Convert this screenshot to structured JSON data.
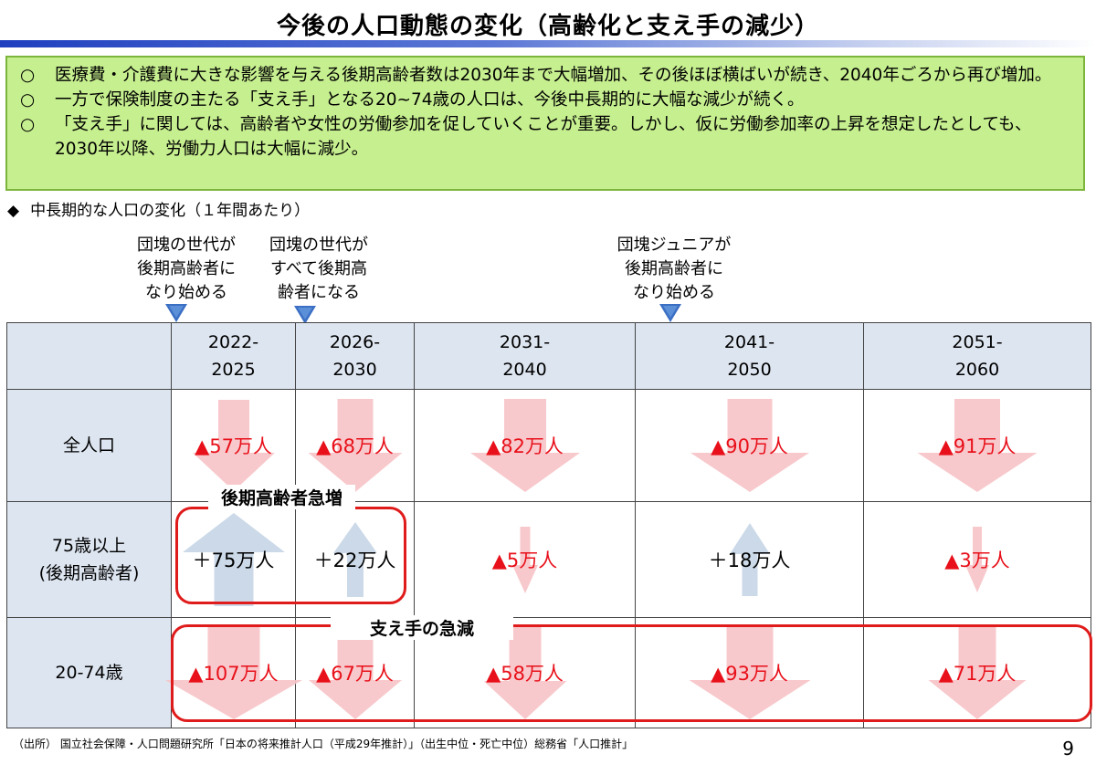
{
  "title": "今後の人口動態の変化（高齢化と支え手の減少）",
  "summary": [
    {
      "mark": "○",
      "text": "医療費・介護費に大きな影響を与える後期高齢者数は2030年まで大幅増加、その後ほぼ横ばいが続き、2040年ごろから再び増加。"
    },
    {
      "mark": "○",
      "text": "一方で保険制度の主たる「支え手」となる20~74歳の人口は、今後中長期的に大幅な減少が続く。"
    },
    {
      "mark": "○",
      "text": "「支え手」に関しては、高齢者や女性の労働参加を促していくことが重要。しかし、仮に労働参加率の上昇を想定したとしても、2030年以降、労働力人口は大幅に減少。"
    }
  ],
  "subheading": {
    "bullet": "◆",
    "text": "中長期的な人口の変化（１年間あたり）"
  },
  "callouts": [
    {
      "lines": [
        "団塊の世代が",
        "後期高齢者に",
        "なり始める"
      ],
      "icon": "triangle-down-icon"
    },
    {
      "lines": [
        "団塊の世代が",
        "すべて後期高",
        "齢者になる"
      ],
      "icon": "triangle-down-icon"
    },
    {
      "lines": [
        "団塊ジュニアが",
        "後期高齢者に",
        "なり始める"
      ],
      "icon": "triangle-down-icon"
    }
  ],
  "table": {
    "periods": [
      {
        "start": "2022-",
        "end": "2025"
      },
      {
        "start": "2026-",
        "end": "2030"
      },
      {
        "start": "2031-",
        "end": "2040"
      },
      {
        "start": "2041-",
        "end": "2050"
      },
      {
        "start": "2051-",
        "end": "2060"
      }
    ],
    "rows": [
      {
        "label": [
          "全人口"
        ],
        "cells": [
          {
            "text": "▲57万人",
            "sign": "neg",
            "value": -57
          },
          {
            "text": "▲68万人",
            "sign": "neg",
            "value": -68
          },
          {
            "text": "▲82万人",
            "sign": "neg",
            "value": -82
          },
          {
            "text": "▲90万人",
            "sign": "neg",
            "value": -90
          },
          {
            "text": "▲91万人",
            "sign": "neg",
            "value": -91
          }
        ]
      },
      {
        "label": [
          "75歳以上",
          "(後期高齢者)"
        ],
        "cells": [
          {
            "text": "＋75万人",
            "sign": "pos",
            "value": 75
          },
          {
            "text": "＋22万人",
            "sign": "pos",
            "value": 22
          },
          {
            "text": "▲5万人",
            "sign": "neg",
            "value": -5
          },
          {
            "text": "＋18万人",
            "sign": "pos",
            "value": 18
          },
          {
            "text": "▲3万人",
            "sign": "neg",
            "value": -3
          }
        ]
      },
      {
        "label": [
          "20-74歳"
        ],
        "cells": [
          {
            "text": "▲107万人",
            "sign": "neg",
            "value": -107
          },
          {
            "text": "▲67万人",
            "sign": "neg",
            "value": -67
          },
          {
            "text": "▲58万人",
            "sign": "neg",
            "value": -58
          },
          {
            "text": "▲93万人",
            "sign": "neg",
            "value": -93
          },
          {
            "text": "▲71万人",
            "sign": "neg",
            "value": -71
          }
        ]
      }
    ]
  },
  "highlights": {
    "elderly_surge": "後期高齢者急増",
    "supporters_decline": "支え手の急減"
  },
  "colors": {
    "decrease": "#e8101a",
    "arrow_down": "#f7c3c6",
    "arrow_up": "#c5d5e6",
    "highlight_border": "#e01b1b",
    "summary_bg": "#c6ef8f"
  },
  "source": "（出所） 国立社会保障・人口問題研究所「日本の将来推計人口（平成29年推計）」（出生中位・死亡中位）総務省「人口推計」",
  "page_number": "9"
}
